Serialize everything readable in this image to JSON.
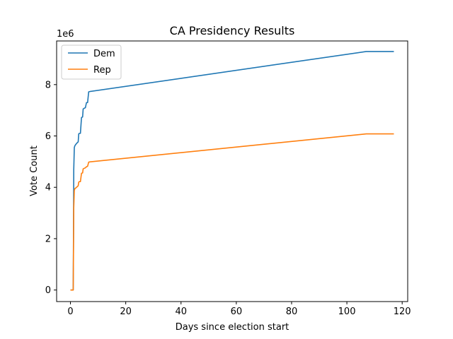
{
  "chart_data": {
    "type": "line",
    "title": "CA Presidency Results",
    "xlabel": "Days since election start",
    "ylabel": "Vote Count",
    "y_offset_label": "1e6",
    "xlim": [
      -5,
      122
    ],
    "ylim": [
      -0.45,
      9.7
    ],
    "xticks": [
      0,
      20,
      40,
      60,
      80,
      100,
      120
    ],
    "yticks": [
      0,
      2,
      4,
      6,
      8
    ],
    "grid": false,
    "legend_position": "top-left",
    "series": [
      {
        "name": "Dem",
        "color": "#1f77b4",
        "x": [
          0,
          1.0,
          1.1,
          1.2,
          1.4,
          1.6,
          2.0,
          2.4,
          2.8,
          3.0,
          3.2,
          3.6,
          4.0,
          4.4,
          4.6,
          5.0,
          5.4,
          5.8,
          6.2,
          6.6,
          7.0,
          107.0,
          117.0
        ],
        "y": [
          0,
          0,
          2.0,
          4.7,
          5.55,
          5.62,
          5.68,
          5.73,
          5.77,
          6.08,
          6.1,
          6.1,
          6.72,
          6.74,
          7.05,
          7.08,
          7.1,
          7.3,
          7.3,
          7.72,
          7.73,
          9.29,
          9.29
        ]
      },
      {
        "name": "Rep",
        "color": "#ff7f0e",
        "x": [
          0,
          1.0,
          1.1,
          1.2,
          1.4,
          1.6,
          2.0,
          2.4,
          2.8,
          3.0,
          3.2,
          3.6,
          4.0,
          4.4,
          4.6,
          5.0,
          5.4,
          5.8,
          6.2,
          6.6,
          7.0,
          107.0,
          117.0
        ],
        "y": [
          0,
          0,
          1.5,
          3.2,
          3.88,
          3.95,
          3.98,
          4.02,
          4.06,
          4.2,
          4.22,
          4.22,
          4.55,
          4.56,
          4.72,
          4.74,
          4.76,
          4.8,
          4.82,
          4.98,
          4.99,
          6.08,
          6.08
        ]
      }
    ]
  }
}
